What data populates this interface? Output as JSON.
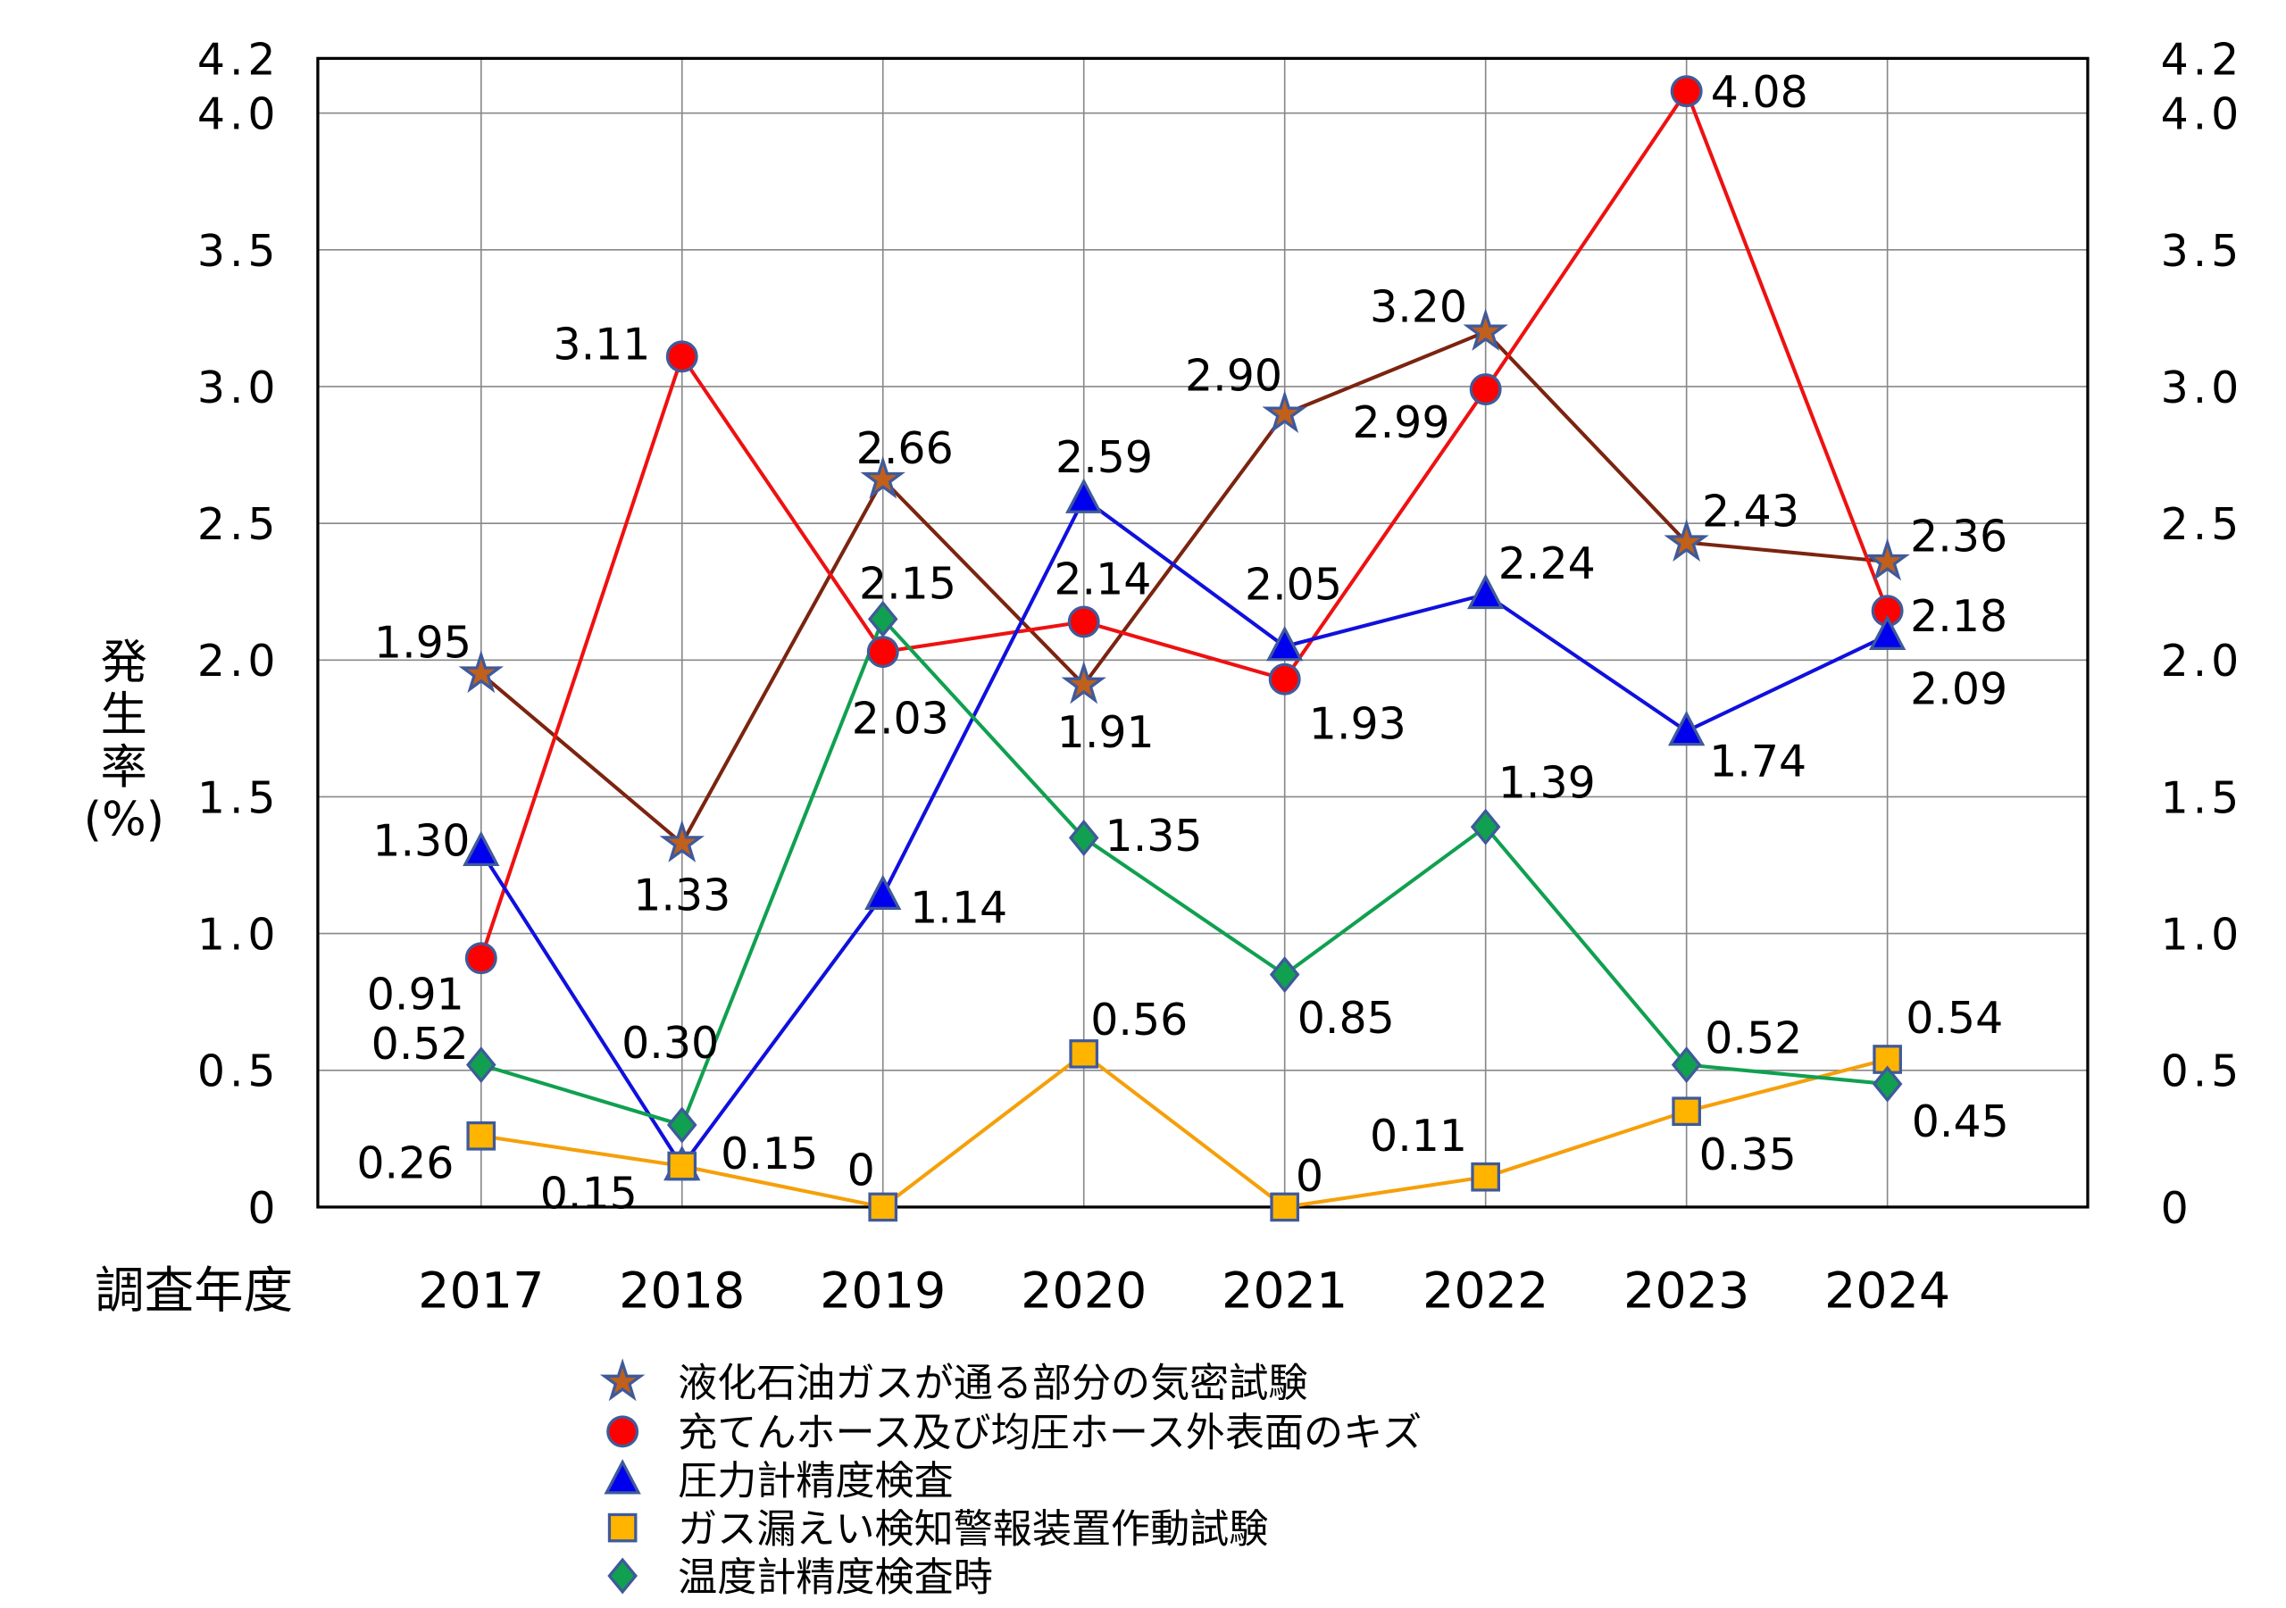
{
  "chart_data": {
    "type": "line",
    "title": "",
    "xlabel": "調査年度",
    "ylabel": [
      "発",
      "生",
      "率",
      "(%)"
    ],
    "ylim": [
      0,
      4.2
    ],
    "y_ticks": [
      "0",
      "0.5",
      "1.0",
      "1.5",
      "2.0",
      "2.5",
      "3.0",
      "3.5",
      "4.0",
      "4.2"
    ],
    "y_tick_values": [
      0,
      0.5,
      1.0,
      1.5,
      2.0,
      2.5,
      3.0,
      3.5,
      4.0,
      4.2
    ],
    "categories": [
      "2017",
      "2018",
      "2019",
      "2020",
      "2021",
      "2022",
      "2023",
      "2024"
    ],
    "grid": true,
    "legend_placement": "bottom",
    "series": [
      {
        "name": "液化石油ガスが通る部分の気密試験",
        "marker": "star",
        "line_color": "#7b2410",
        "marker_fill": "#c0601c",
        "marker_edge": "#3f5a9a",
        "values": [
          1.95,
          1.33,
          2.66,
          1.91,
          2.9,
          3.2,
          2.43,
          2.36
        ],
        "labels": [
          "1.95",
          "1.33",
          "2.66",
          "1.91",
          "2.90",
          "3.20",
          "2.43",
          "2.36"
        ]
      },
      {
        "name": "充てんホース及び均圧ホース外表面のキズ",
        "marker": "circle",
        "line_color": "#ee1111",
        "marker_fill": "#ff0000",
        "marker_edge": "#3f5a9a",
        "values": [
          0.91,
          3.11,
          2.03,
          2.14,
          1.93,
          2.99,
          4.08,
          2.18
        ],
        "labels": [
          "0.91",
          "3.11",
          "2.03",
          "2.14",
          "1.93",
          "2.99",
          "4.08",
          "2.18"
        ]
      },
      {
        "name": "圧力計精度検査",
        "marker": "triangle",
        "line_color": "#1010dd",
        "marker_fill": "#0000ee",
        "marker_edge": "#3f5a9a",
        "values": [
          1.3,
          0.15,
          1.14,
          2.59,
          2.05,
          2.24,
          1.74,
          2.09
        ],
        "labels": [
          "1.30",
          "0.15",
          "1.14",
          "2.59",
          "2.05",
          "2.24",
          "1.74",
          "2.09"
        ]
      },
      {
        "name": "ガス漏えい検知警報装置作動試験",
        "marker": "square",
        "line_color": "#f5a00a",
        "marker_fill": "#ffb400",
        "marker_edge": "#3f5a9a",
        "values": [
          0.26,
          0.15,
          0,
          0.56,
          0,
          0.11,
          0.35,
          0.54
        ],
        "labels": [
          "0.26",
          "0.15",
          "0",
          "0.56",
          "0",
          "0.11",
          "0.35",
          "0.54"
        ]
      },
      {
        "name": "温度計精度検査時",
        "marker": "diamond",
        "line_color": "#10a050",
        "marker_fill": "#10a050",
        "marker_edge": "#3f5a9a",
        "values": [
          0.52,
          0.3,
          2.15,
          1.35,
          0.85,
          1.39,
          0.52,
          0.45
        ],
        "labels": [
          "0.52",
          "0.30",
          "2.15",
          "1.35",
          "0.85",
          "1.39",
          "0.52",
          "0.45"
        ]
      }
    ]
  }
}
